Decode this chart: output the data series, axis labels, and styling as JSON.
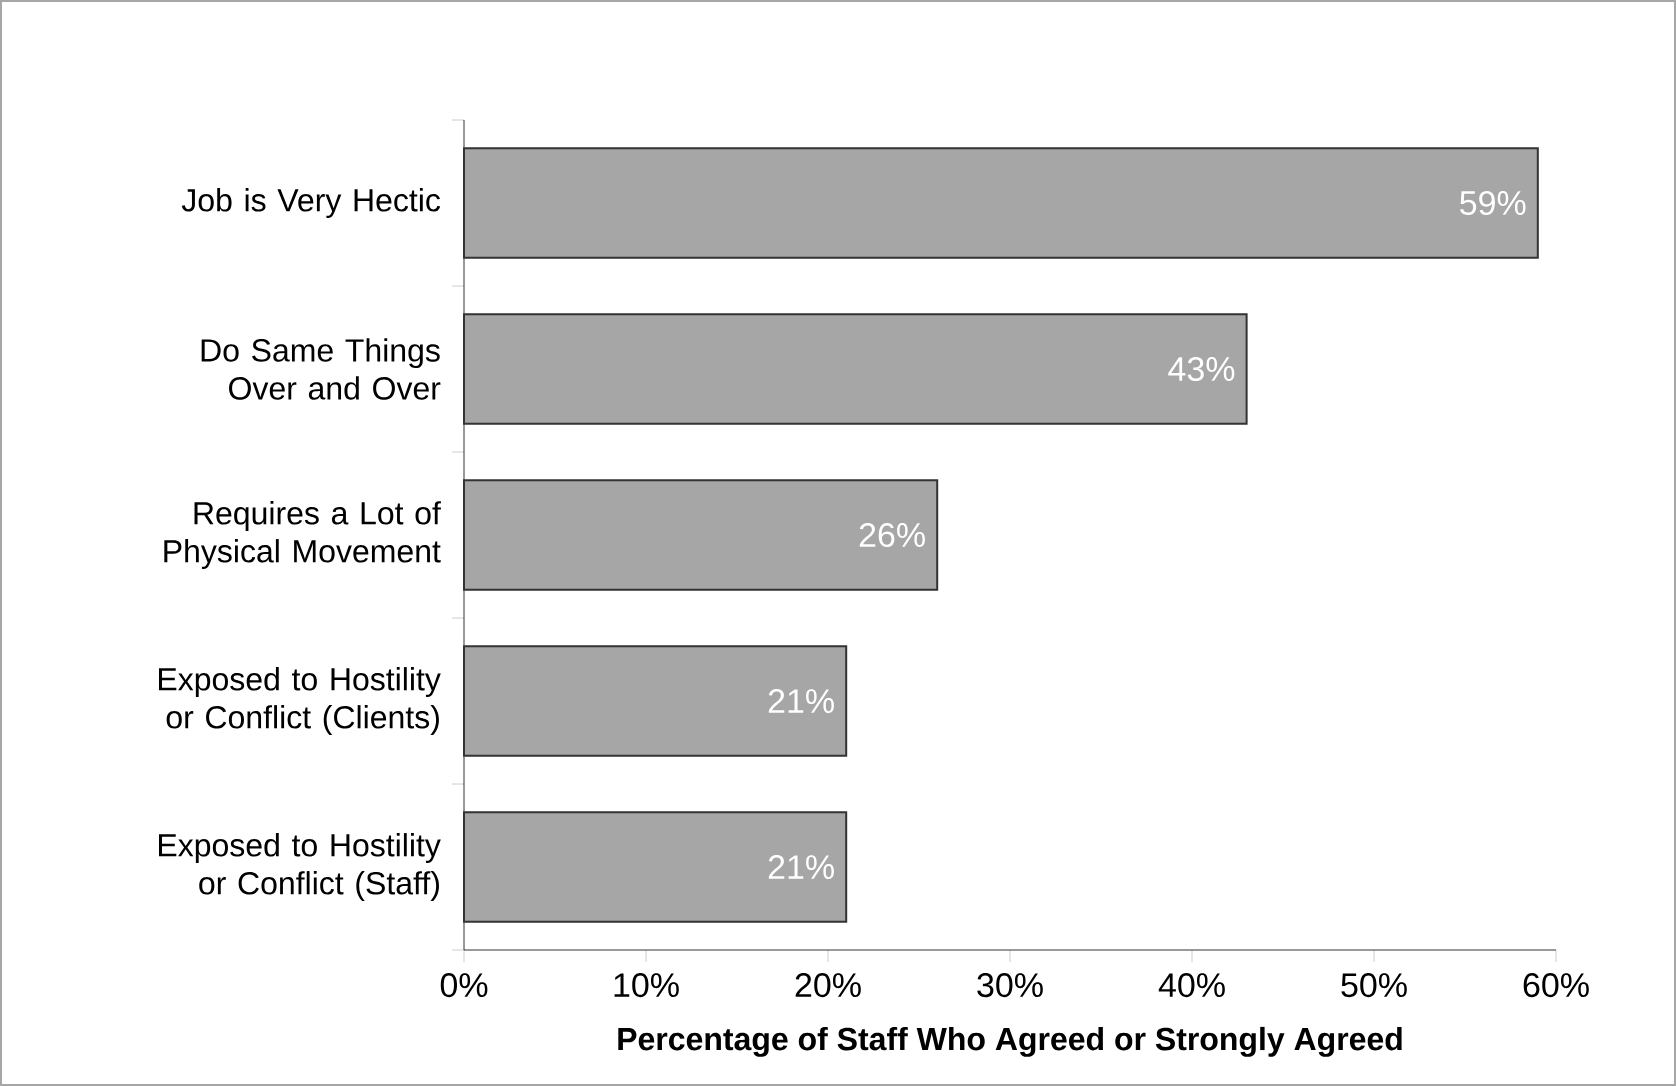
{
  "chart_data": {
    "type": "bar",
    "orientation": "horizontal",
    "xlabel": "Percentage of Staff Who Agreed or Strongly Agreed",
    "categories": [
      "Job is Very Hectic",
      "Do Same Things Over and Over",
      "Requires a Lot of Physical Movement",
      "Exposed to Hostility or Conflict (Clients)",
      "Exposed to Hostility or Conflict (Staff)"
    ],
    "values": [
      59,
      43,
      26,
      21,
      21
    ],
    "value_labels": [
      "59%",
      "43%",
      "26%",
      "21%",
      "21%"
    ],
    "color": "#a6a6a6",
    "xlim": [
      0,
      60
    ],
    "xticks": [
      {
        "value": 0,
        "label": "0%"
      },
      {
        "value": 10,
        "label": "10%"
      },
      {
        "value": 20,
        "label": "20%"
      },
      {
        "value": 30,
        "label": "30%"
      },
      {
        "value": 40,
        "label": "40%"
      },
      {
        "value": 50,
        "label": "50%"
      },
      {
        "value": 60,
        "label": "60%"
      }
    ]
  }
}
